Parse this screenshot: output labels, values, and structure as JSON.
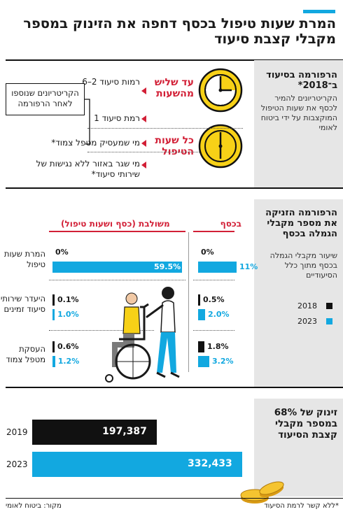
{
  "headline": "המרת שעות טיפול בכסף דחפה את הזינוק במספר מקבלי קצבת סיעוד",
  "colors": {
    "accent": "#12a8e0",
    "red": "#d21f36",
    "dark": "#111111",
    "yellow": "#f7d117",
    "panel": "#e6e6e6"
  },
  "reform": {
    "title": "הרפורמה בסיעוד ב־2018*",
    "body": "הקריטריונים להמיר לכסף את שעות הטיפול המוקצבות על ידי ביטוח לאומי",
    "clock_icon": "clock-icon",
    "groups": [
      {
        "label": "עד שליש מהשעות",
        "rows": [
          "רמות סיעוד 2–6",
          "רמת סיעוד 1"
        ]
      },
      {
        "label": "כל שעות הטיפול",
        "rows": [
          "מי שמעסיק מטפל צמוד*",
          "מי שגר באזור ללא נגישות של שירותי סיעוד*"
        ]
      }
    ],
    "callout": "הקריטריונים שנוספו לאחר הרפורמה"
  },
  "chart_data": {
    "type": "bar",
    "title": "הרפורמה הזניקה את מספר מקבלי הגמלה בכסף",
    "subtitle": "שיעור מקבלי הגמלה בכסף מתוך כלל הסיעודיים",
    "unit": "%",
    "groups": [
      "בכסף",
      "משולבת (כסף ושעות טיפול)"
    ],
    "group_display": [
      "בכסף",
      "משולבת (כסף ושעות טיפול)"
    ],
    "categories": [
      "המרת שעות טיפול",
      "היעדר שירותי סיעוד זמינים",
      "העסקת מטפל צמוד"
    ],
    "series": [
      {
        "name": "2018",
        "money": [
          0,
          0.5,
          1.8
        ],
        "combined": [
          0,
          0.1,
          0.6
        ]
      },
      {
        "name": "2023",
        "money": [
          11,
          2.0,
          3.2
        ],
        "combined": [
          59.5,
          1.0,
          1.2
        ]
      }
    ],
    "labels": {
      "2018": {
        "money": [
          "0%",
          "0.5%",
          "1.8%"
        ],
        "combined": [
          "0%",
          "0.1%",
          "0.6%"
        ]
      },
      "2023": {
        "money": [
          "11%",
          "2.0%",
          "3.2%"
        ],
        "combined": [
          "59.5%",
          "1.0%",
          "1.2%"
        ]
      }
    },
    "legend": [
      "2018",
      "2023"
    ],
    "legend_position": "bottom-right-panel"
  },
  "recipients": {
    "title": "זינוק של 68% במספר מקבלי קצבת הסיעוד",
    "bars": [
      {
        "year": "2019",
        "value": 197387,
        "label": "197,387",
        "color": "#111111"
      },
      {
        "year": "2023",
        "value": 332433,
        "label": "332,433",
        "color": "#12a8e0"
      }
    ]
  },
  "footer": {
    "source": "מקור: ביטוח לאומי",
    "note": "*ללא קשר לרמת הסיעוד"
  }
}
